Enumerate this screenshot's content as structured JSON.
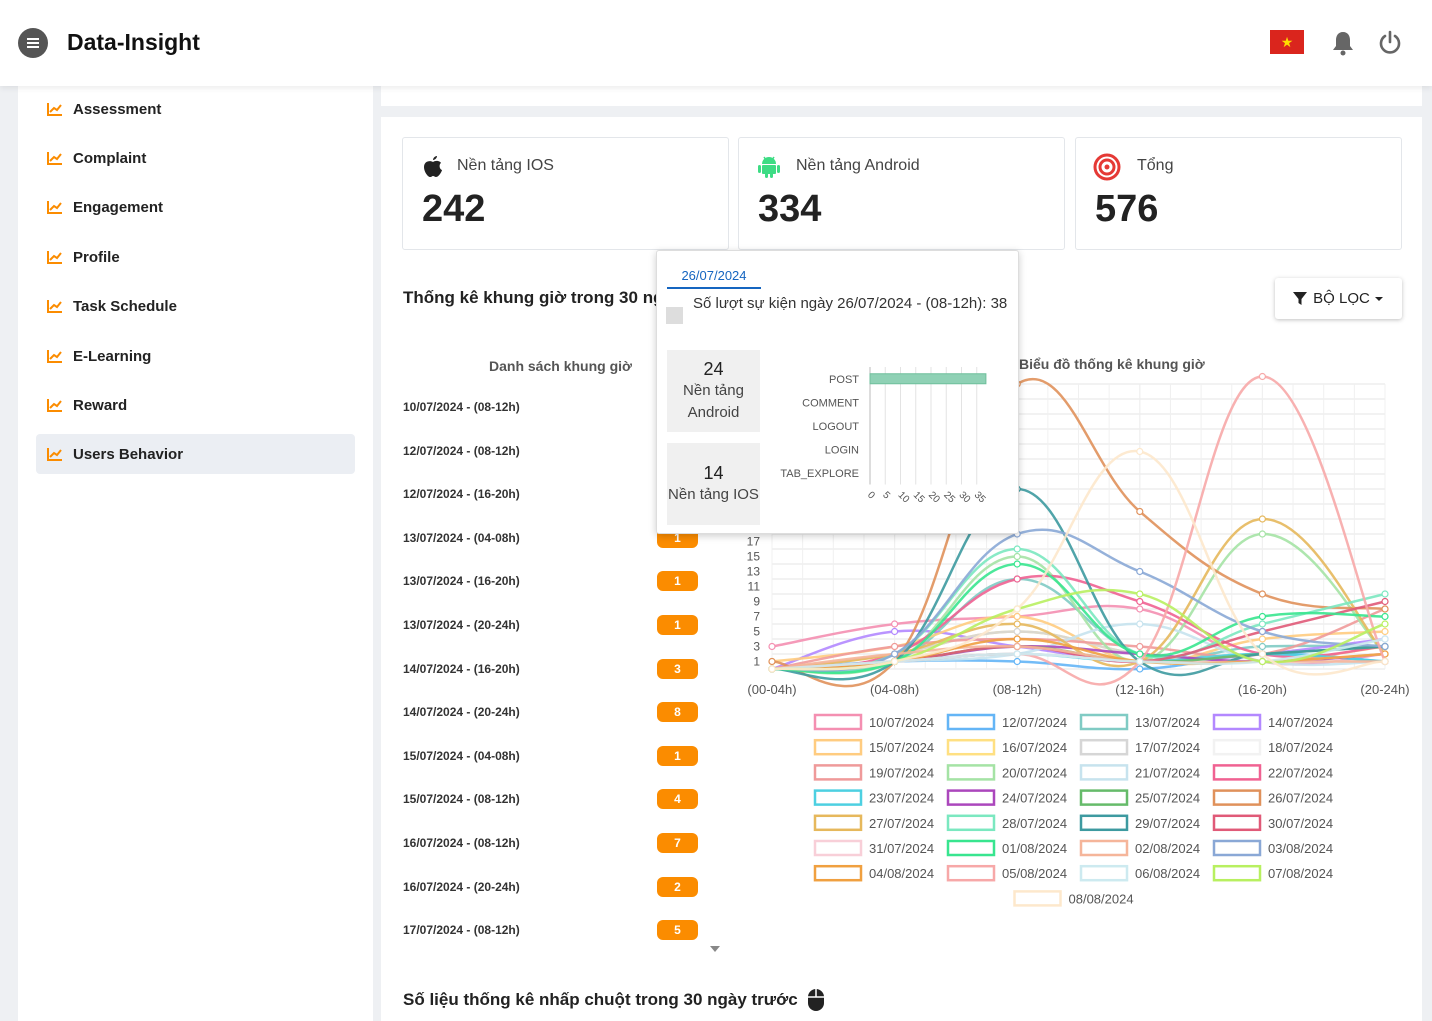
{
  "header": {
    "brand": "Data-Insight"
  },
  "sidebar": {
    "items": [
      {
        "label": "Assessment"
      },
      {
        "label": "Complaint"
      },
      {
        "label": "Engagement"
      },
      {
        "label": "Profile"
      },
      {
        "label": "Task Schedule"
      },
      {
        "label": "E-Learning"
      },
      {
        "label": "Reward"
      },
      {
        "label": "Users Behavior",
        "active": true
      }
    ]
  },
  "stats": [
    {
      "title": "Nền tảng IOS",
      "value": "242",
      "icon": "apple-icon"
    },
    {
      "title": "Nền tảng Android",
      "value": "334",
      "icon": "android-icon"
    },
    {
      "title": "Tổng",
      "value": "576",
      "icon": "target-icon"
    }
  ],
  "section": {
    "title": "Thống kê khung giờ trong 30 ngày trước",
    "filter_label": "BỘ LỌC",
    "list_header": "Danh sách khung giờ",
    "chart_header": "Biểu đồ thống kê khung giờ"
  },
  "timeslots": [
    {
      "label": "10/07/2024 - (08-12h)",
      "count": ""
    },
    {
      "label": "12/07/2024 - (08-12h)",
      "count": ""
    },
    {
      "label": "12/07/2024 - (16-20h)",
      "count": ""
    },
    {
      "label": "13/07/2024 - (04-08h)",
      "count": "1"
    },
    {
      "label": "13/07/2024 - (16-20h)",
      "count": "1"
    },
    {
      "label": "13/07/2024 - (20-24h)",
      "count": "1"
    },
    {
      "label": "14/07/2024 - (16-20h)",
      "count": "3"
    },
    {
      "label": "14/07/2024 - (20-24h)",
      "count": "8"
    },
    {
      "label": "15/07/2024 - (04-08h)",
      "count": "1"
    },
    {
      "label": "15/07/2024 - (08-12h)",
      "count": "4"
    },
    {
      "label": "16/07/2024 - (08-12h)",
      "count": "7"
    },
    {
      "label": "16/07/2024 - (20-24h)",
      "count": "2"
    },
    {
      "label": "17/07/2024 - (08-12h)",
      "count": "5"
    }
  ],
  "tooltip": {
    "tab": "26/07/2024",
    "description": "Số lượt sự kiện ngày 26/07/2024 - (08-12h): 38",
    "android_count": "24",
    "android_label": "Nền tảng Android",
    "ios_count": "14",
    "ios_label": "Nền tảng IOS",
    "bar_chart": {
      "type": "bar",
      "categories": [
        "POST",
        "COMMENT",
        "LOGOUT",
        "LOGIN",
        "TAB_EXPLORE"
      ],
      "values": [
        38,
        0,
        0,
        0,
        0
      ],
      "ticks": [
        "0",
        "5",
        "10",
        "15",
        "20",
        "25",
        "30",
        "35"
      ],
      "xlim": [
        0,
        40
      ],
      "color": "#8fd1b5"
    }
  },
  "chart_data": {
    "type": "line",
    "categories": [
      "(00-04h)",
      "(04-08h)",
      "(08-12h)",
      "(12-16h)",
      "(16-20h)",
      "(20-24h)"
    ],
    "y_ticks": [
      "1",
      "3",
      "5",
      "7",
      "9",
      "11",
      "13",
      "15",
      "17"
    ],
    "ylim": [
      0,
      38
    ],
    "series": [
      {
        "name": "10/07/2024",
        "color": "#f48fb1",
        "values": [
          3,
          6,
          7,
          8,
          1,
          2
        ]
      },
      {
        "name": "12/07/2024",
        "color": "#64b5f6",
        "values": [
          0,
          1,
          1,
          0,
          2,
          1
        ]
      },
      {
        "name": "13/07/2024",
        "color": "#80cbc4",
        "values": [
          0,
          1,
          12,
          2,
          3,
          3
        ]
      },
      {
        "name": "14/07/2024",
        "color": "#b388ff",
        "values": [
          0,
          5,
          3,
          1,
          2,
          4
        ]
      },
      {
        "name": "15/07/2024",
        "color": "#ffcc80",
        "values": [
          1,
          3,
          7,
          1,
          4,
          5
        ]
      },
      {
        "name": "16/07/2024",
        "color": "#ffe082",
        "values": [
          0,
          2,
          5,
          2,
          1,
          3
        ]
      },
      {
        "name": "17/07/2024",
        "color": "#d6d6d6",
        "values": [
          0,
          2,
          5,
          2,
          1,
          2
        ]
      },
      {
        "name": "18/07/2024",
        "color": "#f2f2f2",
        "values": [
          0,
          1,
          2,
          1,
          1,
          1
        ]
      },
      {
        "name": "19/07/2024",
        "color": "#ef9a9a",
        "values": [
          0,
          3,
          4,
          3,
          2,
          8
        ]
      },
      {
        "name": "20/07/2024",
        "color": "#a5e3a5",
        "values": [
          0,
          1,
          15,
          1,
          18,
          2
        ]
      },
      {
        "name": "21/07/2024",
        "color": "#c7e3ee",
        "values": [
          0,
          1,
          2,
          6,
          1,
          1
        ]
      },
      {
        "name": "22/07/2024",
        "color": "#f06292",
        "values": [
          0,
          2,
          12,
          9,
          2,
          3
        ]
      },
      {
        "name": "23/07/2024",
        "color": "#4dd0e1",
        "values": [
          0,
          1,
          2,
          1,
          2,
          1
        ]
      },
      {
        "name": "24/07/2024",
        "color": "#ab47bc",
        "values": [
          0,
          1,
          3,
          2,
          1,
          2
        ]
      },
      {
        "name": "25/07/2024",
        "color": "#66bb6a",
        "values": [
          0,
          1,
          3,
          1,
          2,
          3
        ]
      },
      {
        "name": "26/07/2024",
        "color": "#e0915b",
        "values": [
          1,
          1,
          38,
          21,
          10,
          8
        ]
      },
      {
        "name": "27/07/2024",
        "color": "#e6b85c",
        "values": [
          0,
          2,
          6,
          1,
          20,
          2
        ]
      },
      {
        "name": "28/07/2024",
        "color": "#7be8c0",
        "values": [
          0,
          2,
          16,
          2,
          6,
          10
        ]
      },
      {
        "name": "29/07/2024",
        "color": "#3d9aa0",
        "values": [
          0,
          1,
          24,
          1,
          2,
          3
        ]
      },
      {
        "name": "30/07/2024",
        "color": "#e05a78",
        "values": [
          0,
          1,
          3,
          1,
          5,
          9
        ]
      },
      {
        "name": "31/07/2024",
        "color": "#f8cfd8",
        "values": [
          0,
          1,
          2,
          1,
          1,
          2
        ]
      },
      {
        "name": "01/08/2024",
        "color": "#38e58f",
        "values": [
          0,
          1,
          14,
          2,
          7,
          7
        ]
      },
      {
        "name": "02/08/2024",
        "color": "#f5b59a",
        "values": [
          0,
          2,
          3,
          1,
          1,
          1
        ]
      },
      {
        "name": "03/08/2024",
        "color": "#8aa8d6",
        "values": [
          0,
          2,
          18,
          13,
          5,
          3
        ]
      },
      {
        "name": "04/08/2024",
        "color": "#f0a040",
        "values": [
          0,
          1,
          4,
          1,
          1,
          2
        ]
      },
      {
        "name": "05/08/2024",
        "color": "#f7a8a8",
        "values": [
          0,
          1,
          2,
          1,
          39,
          1
        ]
      },
      {
        "name": "06/08/2024",
        "color": "#cdeaf0",
        "values": [
          0,
          1,
          2,
          1,
          1,
          4
        ]
      },
      {
        "name": "07/08/2024",
        "color": "#b8f060",
        "values": [
          0,
          1,
          8,
          10,
          1,
          6
        ]
      },
      {
        "name": "08/08/2024",
        "color": "#fde8cc",
        "values": [
          0,
          1,
          8,
          29,
          2,
          1
        ]
      }
    ]
  },
  "bottom": {
    "title": "Số liệu thống kê nhấp chuột trong 30 ngày trước"
  }
}
